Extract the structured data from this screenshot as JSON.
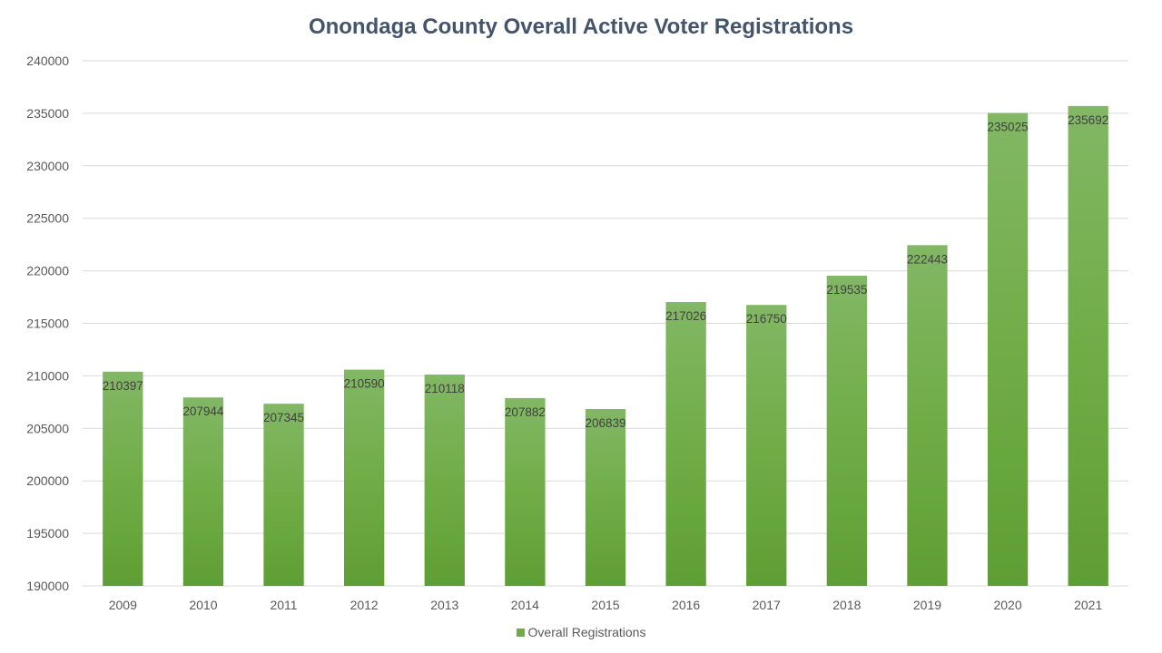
{
  "chart_data": {
    "type": "bar",
    "title": "Onondaga County Overall Active Voter Registrations",
    "xlabel": "",
    "ylabel": "",
    "categories": [
      "2009",
      "2010",
      "2011",
      "2012",
      "2013",
      "2014",
      "2015",
      "2016",
      "2017",
      "2018",
      "2019",
      "2020",
      "2021"
    ],
    "series": [
      {
        "name": "Overall Registrations",
        "color": "#70ad47",
        "values": [
          210397,
          207944,
          207345,
          210590,
          210118,
          207882,
          206839,
          217026,
          216750,
          219535,
          222443,
          235025,
          235692
        ]
      }
    ],
    "ylim": [
      190000,
      240000
    ],
    "yticks": [
      190000,
      195000,
      200000,
      205000,
      210000,
      215000,
      220000,
      225000,
      230000,
      235000,
      240000
    ],
    "grid": true,
    "data_labels": true,
    "legend": "bottom"
  }
}
